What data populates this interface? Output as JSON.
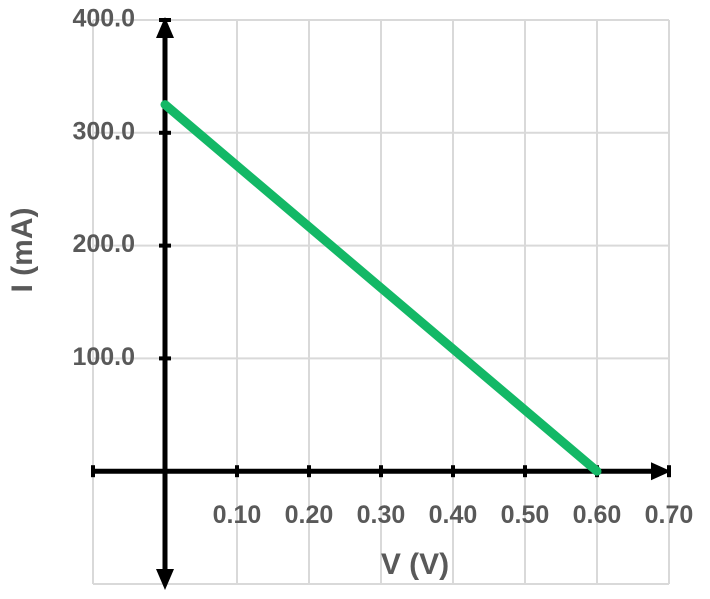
{
  "chart_data": {
    "type": "line",
    "x_label": "V (V)",
    "y_label": "I (mA)",
    "x": [
      0,
      0.6
    ],
    "values": [
      325,
      0
    ],
    "color": "#13b866",
    "xlim": [
      -0.1,
      0.7
    ],
    "xticks": [
      {
        "value": 0.1,
        "label": "0.10"
      },
      {
        "value": 0.2,
        "label": "0.20"
      },
      {
        "value": 0.3,
        "label": "0.30"
      },
      {
        "value": 0.4,
        "label": "0.40"
      },
      {
        "value": 0.5,
        "label": "0.50"
      },
      {
        "value": 0.6,
        "label": "0.60"
      },
      {
        "value": 0.7,
        "label": "0.70"
      }
    ],
    "ylim": [
      -100,
      400
    ],
    "yticks": [
      {
        "value": 100,
        "label": "100.0"
      },
      {
        "value": 200,
        "label": "200.0"
      },
      {
        "value": 300,
        "label": "300.0"
      },
      {
        "value": 400,
        "label": "400.0"
      }
    ],
    "grid": true
  }
}
